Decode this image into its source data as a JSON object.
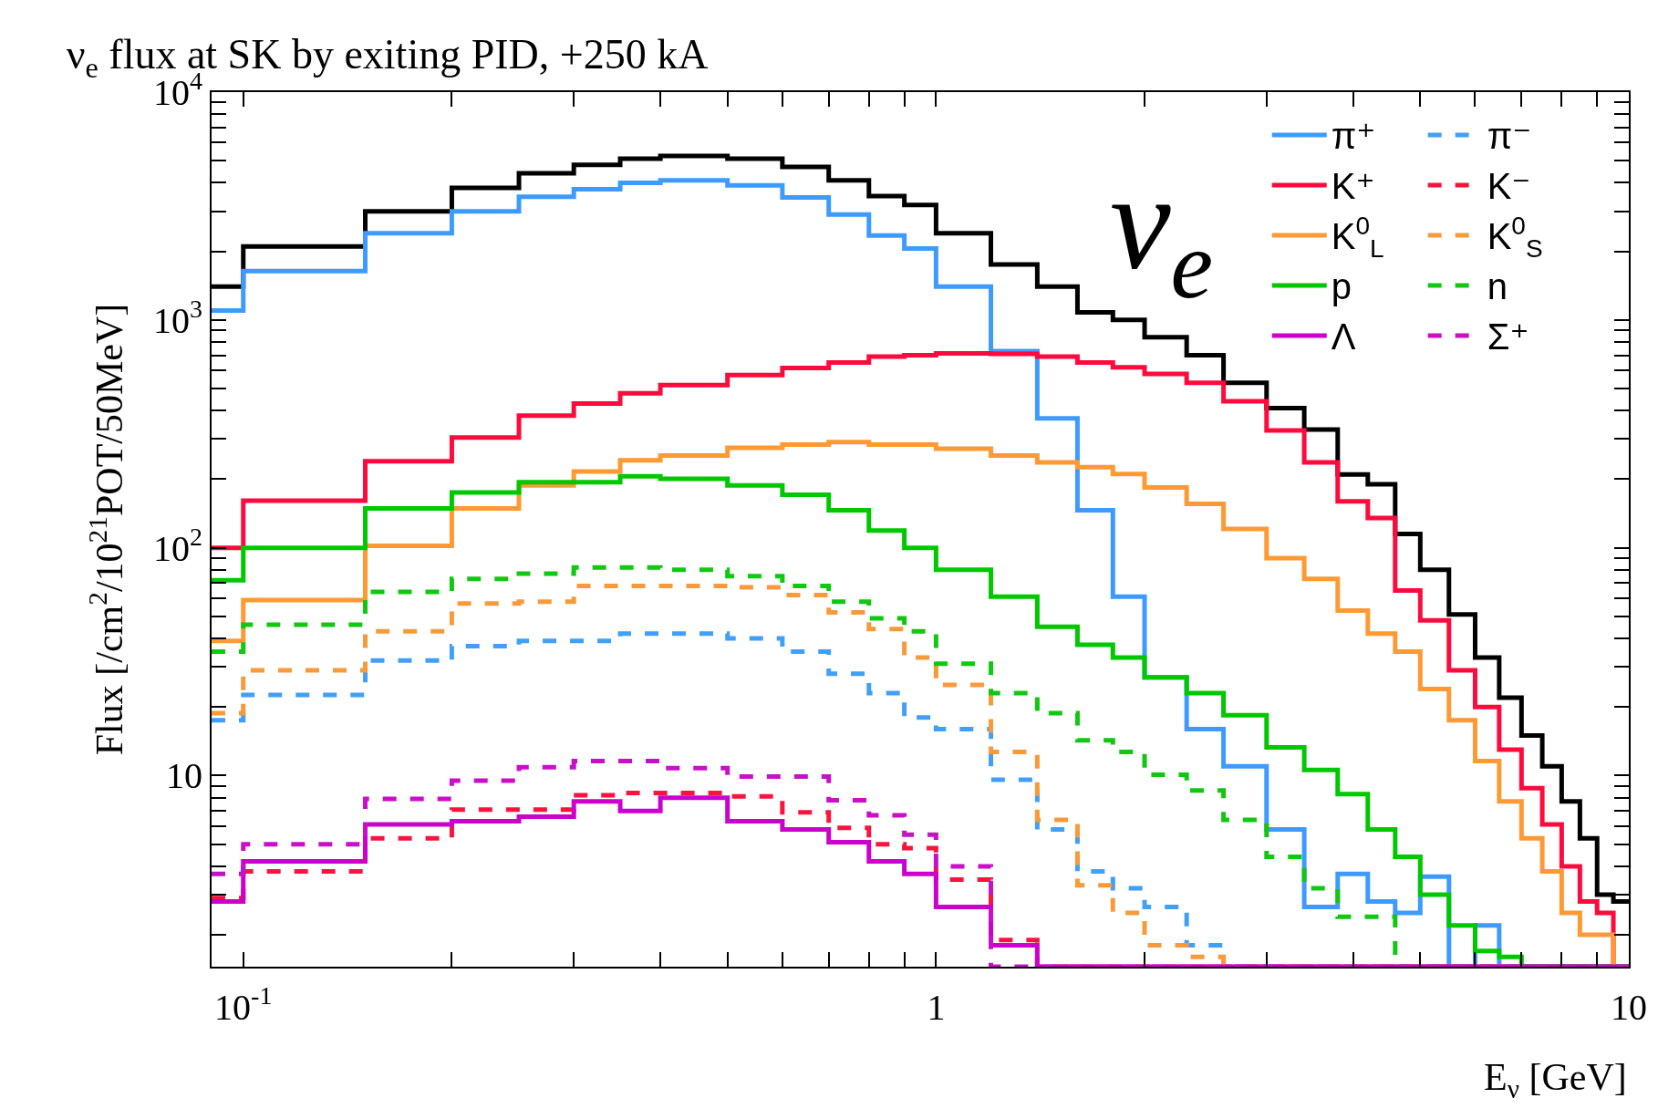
{
  "chart_data": {
    "type": "histogram",
    "title": "ν$_{e}$ flux at SK by exiting PID, +250 kA",
    "xlabel": "E$_{ν}$ [GeV]",
    "ylabel": "Flux [/cm$^{2}$/10$^{21}$POT/50MeV]",
    "annotations": [
      "ν$_{e}$"
    ],
    "bins": [
      0.09,
      0.1,
      0.15,
      0.2,
      0.25,
      0.3,
      0.35,
      0.4,
      0.5,
      0.6,
      0.7,
      0.8,
      0.9,
      1.0,
      1.2,
      1.4,
      1.6,
      1.8,
      2.0,
      2.3,
      2.6,
      3.0,
      3.4,
      3.8,
      4.2,
      4.6,
      5.0,
      5.5,
      6.0,
      6.5,
      7.0,
      7.5,
      8.0,
      8.5,
      9.0,
      9.5,
      10
    ],
    "series": [
      {
        "color": "#000000",
        "line_style": "solid",
        "values": [
          1400,
          2100,
          3000,
          3800,
          4400,
          4800,
          5100,
          5250,
          5100,
          4700,
          4100,
          3500,
          3200,
          2400,
          1750,
          1400,
          1080,
          1000,
          840,
          700,
          530,
          410,
          330,
          210,
          190,
          115,
          80,
          51,
          33,
          22,
          15,
          11,
          7.7,
          5.3,
          3.0,
          2.8
        ]
      },
      {
        "name": "π⁺",
        "color": "#3d9bff",
        "line_style": "solid",
        "values": [
          1100,
          1640,
          2400,
          3000,
          3470,
          3750,
          4000,
          4100,
          3900,
          3450,
          2900,
          2350,
          2060,
          1400,
          730,
          370,
          146,
          61,
          27,
          16,
          11,
          5.8,
          2.65,
          3.7,
          2.8,
          2.5,
          3.6,
          null,
          2.2,
          null,
          null,
          null,
          null,
          null,
          null,
          null
        ]
      },
      {
        "name": "π⁻",
        "color": "#40a0f8",
        "line_style": "dashed",
        "values": [
          17.5,
          22.6,
          32,
          37,
          39,
          39,
          42,
          42,
          40,
          35,
          28,
          23,
          18,
          16,
          9.6,
          5.8,
          3.8,
          3.2,
          2.65,
          1.8,
          null,
          null,
          null,
          null,
          null,
          null,
          null,
          null,
          null,
          null,
          null,
          null,
          null,
          null,
          null,
          null
        ]
      },
      {
        "name": "K⁺",
        "color": "#ff0a3c",
        "line_style": "solid",
        "values": [
          100,
          161,
          240,
          305,
          380,
          430,
          476,
          518,
          573,
          616,
          650,
          690,
          700,
          714,
          710,
          690,
          650,
          620,
          580,
          530,
          440,
          327,
          237,
          160,
          135,
          65,
          48,
          29,
          20,
          13,
          8.8,
          6.1,
          4.0,
          2.8,
          2.5,
          null
        ]
      },
      {
        "name": "K⁻",
        "color": "#f8143c",
        "line_style": "dashed",
        "values": [
          2.9,
          3.8,
          5.3,
          7.1,
          7.1,
          8.2,
          8.4,
          8.4,
          8.1,
          6.9,
          5.9,
          5.0,
          4.8,
          3.5,
          1.9,
          null,
          null,
          null,
          null,
          null,
          null,
          null,
          null,
          null,
          null,
          null,
          null,
          null,
          null,
          null,
          null,
          null,
          null,
          null,
          null,
          null
        ]
      },
      {
        "name": "K$^{0}$$_{L}$",
        "color": "#ff9933",
        "line_style": "solid",
        "values": [
          39,
          59,
          102,
          149,
          188,
          216,
          242,
          254,
          275,
          284,
          291,
          284,
          284,
          272,
          254,
          237,
          226,
          211,
          184,
          156,
          121,
          90,
          73,
          53,
          42,
          35,
          24,
          17.5,
          11.6,
          7.7,
          5.3,
          3.8,
          2.5,
          2.0,
          2.0,
          null
        ]
      },
      {
        "name": "K$^{0}$$_{S}$",
        "color": "#f89a3a",
        "line_style": "dashed",
        "values": [
          18.8,
          29,
          43,
          57,
          58,
          68,
          68,
          68,
          67,
          62,
          52,
          44,
          33,
          25,
          12.7,
          6.4,
          3.3,
          2.5,
          1.8,
          1.6,
          null,
          null,
          null,
          null,
          null,
          null,
          null,
          null,
          null,
          null,
          null,
          null,
          null,
          null,
          null,
          null
        ]
      },
      {
        "name": "p",
        "color": "#00c800",
        "line_style": "solid",
        "values": [
          72,
          100,
          149,
          175,
          194,
          194,
          206,
          201,
          188,
          171,
          146,
          119,
          100,
          80,
          61,
          45,
          37.5,
          33,
          27,
          23,
          18.4,
          13.3,
          10.6,
          8.3,
          5.8,
          4.4,
          3.0,
          2.2,
          1.7,
          1.6,
          null,
          null,
          null,
          null,
          null,
          null
        ]
      },
      {
        "name": "n",
        "color": "#10c810",
        "line_style": "dashed",
        "values": [
          35,
          46,
          64,
          73,
          77,
          82,
          82,
          80,
          75,
          68,
          58,
          49,
          43,
          31,
          23,
          18.8,
          14.3,
          12.7,
          10.1,
          8.6,
          6.4,
          4.4,
          3.2,
          2.4,
          2.4,
          null,
          null,
          null,
          null,
          null,
          null,
          null,
          null,
          null,
          null,
          null
        ]
      },
      {
        "name": "Λ",
        "color": "#cc00cc",
        "line_style": "solid",
        "values": [
          2.8,
          4.2,
          6.1,
          6.3,
          6.6,
          7.7,
          7.0,
          8.0,
          6.3,
          5.8,
          5.1,
          4.2,
          3.7,
          2.65,
          1.8,
          null,
          null,
          null,
          null,
          null,
          null,
          null,
          null,
          null,
          null,
          null,
          null,
          null,
          null,
          null,
          null,
          null,
          null,
          null,
          null,
          null
        ]
      },
      {
        "name": "Σ⁺",
        "color": "#c810c8",
        "line_style": "dashed",
        "values": [
          3.7,
          5.0,
          7.9,
          9.5,
          10.9,
          11.6,
          11.6,
          10.8,
          9.9,
          9.9,
          7.8,
          6.7,
          5.5,
          4.0,
          null,
          null,
          null,
          null,
          null,
          null,
          null,
          null,
          null,
          null,
          null,
          null,
          null,
          null,
          null,
          null,
          null,
          null,
          null,
          null,
          null,
          null
        ]
      }
    ],
    "xlim": [
      0.09,
      10
    ],
    "ylim": [
      1.45,
      10000
    ],
    "log": "xy",
    "legend": "top right",
    "xticks": [
      {
        "value": 0.1,
        "label": "10$^{-1}$"
      },
      {
        "value": 0.2,
        "label": null
      },
      {
        "value": 0.3,
        "label": null
      },
      {
        "value": 0.4,
        "label": null
      },
      {
        "value": 0.5,
        "label": null
      },
      {
        "value": 0.6,
        "label": null
      },
      {
        "value": 0.7,
        "label": null
      },
      {
        "value": 0.8,
        "label": null
      },
      {
        "value": 0.9,
        "label": null
      },
      1,
      {
        "value": 2,
        "label": null
      },
      {
        "value": 3,
        "label": null
      },
      {
        "value": 4,
        "label": null
      },
      {
        "value": 5,
        "label": null
      },
      {
        "value": 6,
        "label": null
      },
      {
        "value": 7,
        "label": null
      },
      {
        "value": 8,
        "label": null
      },
      {
        "value": 9,
        "label": null
      },
      10
    ],
    "yticks": [
      {
        "value": 2,
        "label": null
      },
      {
        "value": 3,
        "label": null
      },
      {
        "value": 4,
        "label": null
      },
      {
        "value": 5,
        "label": null
      },
      {
        "value": 6,
        "label": null
      },
      {
        "value": 7,
        "label": null
      },
      {
        "value": 8,
        "label": null
      },
      {
        "value": 9,
        "label": null
      },
      10,
      {
        "value": 20,
        "label": null
      },
      {
        "value": 30,
        "label": null
      },
      {
        "value": 40,
        "label": null
      },
      {
        "value": 50,
        "label": null
      },
      {
        "value": 60,
        "label": null
      },
      {
        "value": 70,
        "label": null
      },
      {
        "value": 80,
        "label": null
      },
      {
        "value": 90,
        "label": null
      },
      {
        "value": 100,
        "label": "10$^{2}$"
      },
      {
        "value": 200,
        "label": null
      },
      {
        "value": 300,
        "label": null
      },
      {
        "value": 400,
        "label": null
      },
      {
        "value": 500,
        "label": null
      },
      {
        "value": 600,
        "label": null
      },
      {
        "value": 700,
        "label": null
      },
      {
        "value": 800,
        "label": null
      },
      {
        "value": 900,
        "label": null
      },
      {
        "value": 1000,
        "label": "10$^{3}$"
      },
      {
        "value": 2000,
        "label": null
      },
      {
        "value": 3000,
        "label": null
      },
      {
        "value": 4000,
        "label": null
      },
      {
        "value": 5000,
        "label": null
      },
      {
        "value": 6000,
        "label": null
      },
      {
        "value": 7000,
        "label": null
      },
      {
        "value": 8000,
        "label": null
      },
      {
        "value": 9000,
        "label": null
      },
      {
        "value": 10000,
        "label": "10$^{4}$"
      }
    ]
  }
}
